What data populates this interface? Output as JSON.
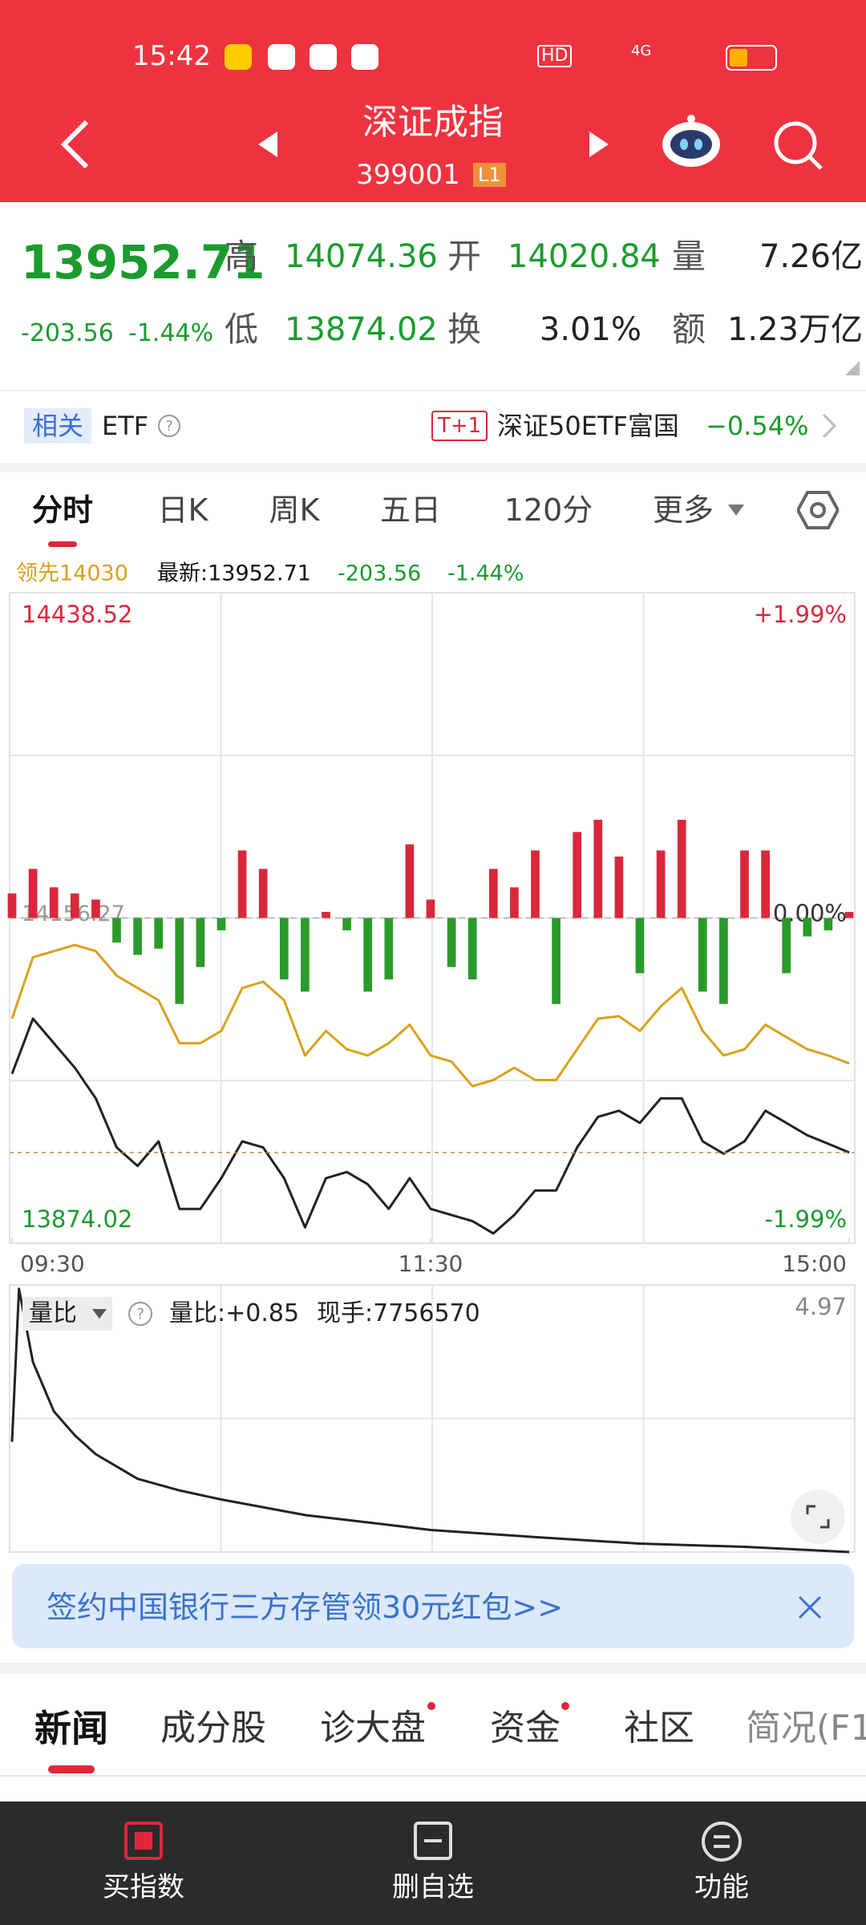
{
  "status_bar": {
    "time": "15:42",
    "hd": "HD",
    "network": "4G"
  },
  "header": {
    "title": "深证成指",
    "code": "399001",
    "level": "L1"
  },
  "quote": {
    "price": "13952.71",
    "change": "-203.56",
    "change_pct": "-1.44%",
    "high_label": "高",
    "high": "14074.36",
    "open_label": "开",
    "open": "14020.84",
    "volume_label": "量",
    "volume": "7.26亿",
    "low_label": "低",
    "low": "13874.02",
    "turnover_label": "换",
    "turnover": "3.01%",
    "amount_label": "额",
    "amount": "1.23万亿"
  },
  "etf": {
    "tag": "相关",
    "label": "ETF",
    "badge": "T+1",
    "name": "深证50ETF富国",
    "change": "−0.54%"
  },
  "chart_tabs": [
    "分时",
    "日K",
    "周K",
    "五日",
    "120分",
    "更多"
  ],
  "legend": {
    "lead": "领先14030",
    "latest": "最新:13952.71",
    "change": "-203.56",
    "change_pct": "-1.44%"
  },
  "chart_data": [
    {
      "type": "line",
      "grid_rows": 4,
      "grid_cols": 4,
      "xlim": [
        0,
        240
      ],
      "xticks": [
        {
          "value": 0,
          "label": "09:30"
        },
        {
          "value": 120,
          "label": "11:30"
        },
        {
          "value": 240,
          "label": "15:00"
        }
      ],
      "ylim": [
        13874.02,
        14438.52
      ],
      "yticks": [
        13874.02,
        14156.27,
        14438.52
      ],
      "y2lim": [
        -1.99,
        1.99
      ],
      "y2ticks": [
        {
          "value": 1.99,
          "label": "+1.99%"
        },
        {
          "value": 0,
          "label": "0.00%"
        },
        {
          "value": -1.99,
          "label": "-1.99%"
        }
      ],
      "x": [
        0,
        6,
        12,
        18,
        24,
        30,
        36,
        42,
        48,
        54,
        60,
        66,
        72,
        78,
        84,
        90,
        96,
        102,
        108,
        114,
        120,
        126,
        132,
        138,
        144,
        150,
        156,
        162,
        168,
        174,
        180,
        186,
        192,
        198,
        204,
        210,
        216,
        222,
        228,
        234,
        240
      ],
      "series": [
        {
          "color": "#222222",
          "values": [
            14021.0,
            14068.9,
            14047.6,
            14026.3,
            13999.7,
            13957.1,
            13941.1,
            13962.4,
            13903.8,
            13903.8,
            13930.5,
            13962.4,
            13957.1,
            13930.5,
            13887.8,
            13930.5,
            13935.8,
            13925.1,
            13903.8,
            13930.5,
            13903.8,
            13898.5,
            13893.2,
            13882.5,
            13898.5,
            13919.8,
            13919.8,
            13957.1,
            13983.7,
            13989.0,
            13978.4,
            13999.7,
            13999.7,
            13962.4,
            13951.8,
            13962.4,
            13989.0,
            13978.4,
            13967.7,
            13960.3,
            13952.71
          ]
        },
        {
          "color": "#d9a21b",
          "values": [
            14068.9,
            14122.2,
            14127.5,
            14132.8,
            14127.5,
            14106.2,
            14095.5,
            14084.9,
            14047.6,
            14047.6,
            14058.3,
            14095.5,
            14100.9,
            14084.9,
            14037.0,
            14058.3,
            14042.3,
            14037.0,
            14047.6,
            14063.6,
            14037.0,
            14031.6,
            14010.3,
            14015.7,
            14026.3,
            14015.7,
            14015.7,
            14042.3,
            14068.9,
            14071.0,
            14058.3,
            14079.6,
            14095.5,
            14058.3,
            14037.0,
            14042.3,
            14063.6,
            14052.9,
            14042.3,
            14037.0,
            14030
          ]
        }
      ],
      "strength_bars": {
        "up_color": "#d9283a",
        "down_color": "#2a9a2a",
        "values": [
          21.3,
          42.6,
          26.6,
          21.3,
          16.0,
          -21.3,
          -32.0,
          -26.6,
          -74.6,
          -42.6,
          -10.7,
          58.6,
          42.6,
          -53.3,
          -63.9,
          5.3,
          -10.7,
          -63.9,
          -53.3,
          63.9,
          16.0,
          -42.6,
          -53.3,
          42.6,
          26.6,
          58.6,
          -74.6,
          74.6,
          85.2,
          53.3,
          -47.9,
          58.6,
          85.2,
          -63.9,
          -74.6,
          58.6,
          58.6,
          -47.9,
          -16.0,
          -10.7,
          5.3
        ]
      }
    },
    {
      "type": "line",
      "grid_rows": 2,
      "grid_cols": 4,
      "title": "量比",
      "ratio": "量比:+0.85",
      "current_hand": "现手:7756570",
      "xlim": [
        0,
        240
      ],
      "ylim": [
        0.85,
        4.97
      ],
      "yticks": [
        4.97
      ],
      "x": [
        0,
        2,
        6,
        12,
        18,
        24,
        36,
        48,
        60,
        84,
        108,
        120,
        150,
        180,
        210,
        240
      ],
      "series": [
        {
          "color": "#222222",
          "values": [
            2.55,
            4.91,
            3.78,
            3.02,
            2.65,
            2.36,
            1.98,
            1.8,
            1.66,
            1.42,
            1.27,
            1.19,
            1.08,
            0.98,
            0.93,
            0.85
          ]
        }
      ]
    }
  ],
  "banner": "签约中国银行三方存管领30元红包>>",
  "news_tabs": [
    "新闻",
    "成分股",
    "诊大盘",
    "资金",
    "社区",
    "简况(F1"
  ],
  "bottom_nav": [
    "买指数",
    "删自选",
    "功能"
  ]
}
